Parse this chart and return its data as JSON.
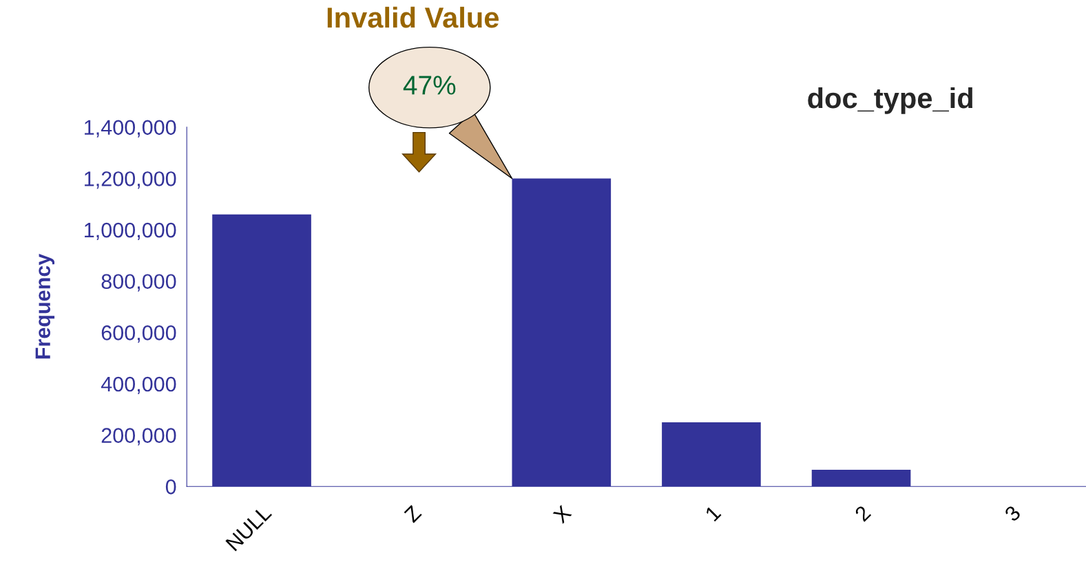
{
  "chart_data": {
    "type": "bar",
    "title": "doc_type_id",
    "ylabel": "Frequency",
    "categories": [
      "NULL",
      "Z",
      "X",
      "1",
      "2",
      "3"
    ],
    "values": [
      1060000,
      0,
      1200000,
      250000,
      65000,
      0
    ],
    "color": "#333399",
    "ylim": [
      0,
      1400000
    ],
    "yticks": [
      0,
      {
        "value": 200000,
        "label": "200,000"
      },
      {
        "value": 400000,
        "label": "400,000"
      },
      {
        "value": 600000,
        "label": "600,000"
      },
      {
        "value": 800000,
        "label": "800,000"
      },
      {
        "value": 1000000,
        "label": "1,000,000"
      },
      {
        "value": 1200000,
        "label": "1,200,000"
      },
      {
        "value": 1400000,
        "label": "1,400,000"
      }
    ],
    "annotations": [
      "Invalid Value",
      "47%"
    ]
  }
}
